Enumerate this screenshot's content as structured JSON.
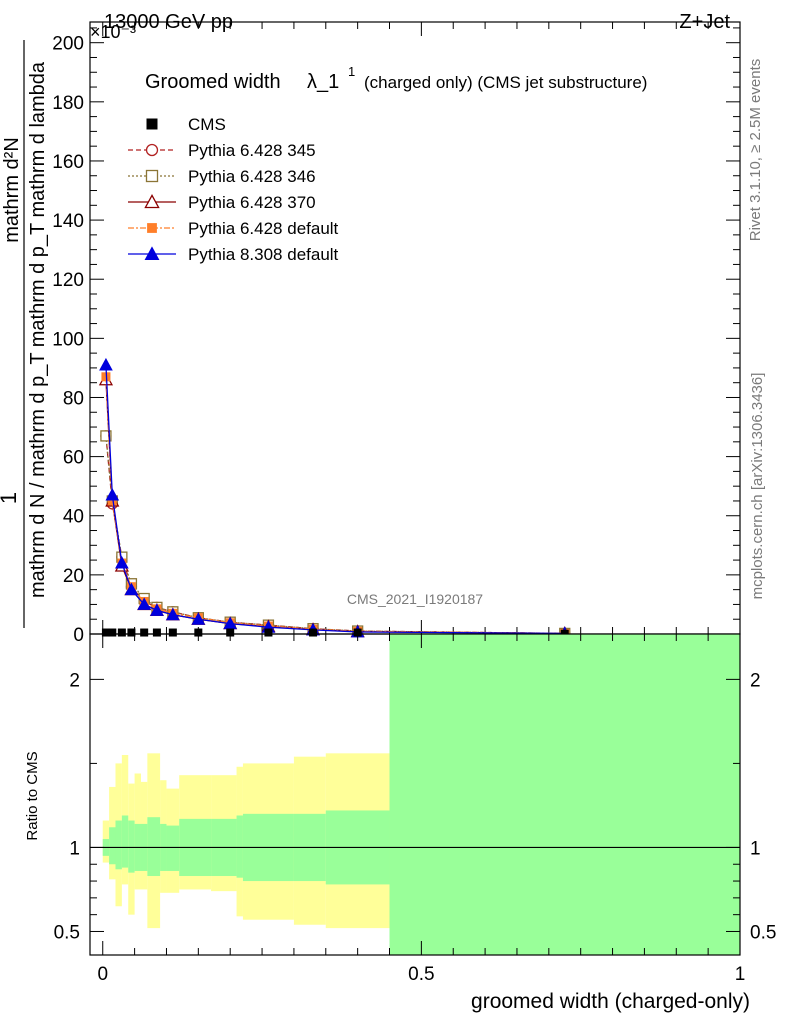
{
  "header": {
    "left": "13000 GeV pp",
    "right": "Z+Jet",
    "exponent": "×10⁻³"
  },
  "side": {
    "rivet": "Rivet 3.1.10, ≥ 2.5M events",
    "mcplots": "mcplots.cern.ch [arXiv:1306.3436]"
  },
  "watermark": "CMS_2021_I1920187",
  "colors": {
    "cms": "#000000",
    "p345": "#b22222",
    "p346": "#8b7536",
    "p370": "#8b0000",
    "p6def": "#ff7f2a",
    "p8def": "#0000dd",
    "band_yellow": "#ffff99",
    "band_green": "#99ff99"
  },
  "chart_data": [
    {
      "type": "line",
      "title": "Groomed width λ_1¹ (charged only) (CMS jet substructure)",
      "title_main": "Groomed width",
      "title_lambda": "λ_1",
      "title_sup": "1",
      "title_rest": "(charged only) (CMS jet substructure)",
      "ylabel_num": "1",
      "ylabel_den": "mathrm d N / mathrm d p_T mathrm d p_T mathrm d lambda",
      "ylabel_top": "mathrm d²N",
      "ylim": [
        0,
        207
      ],
      "xlim": [
        -0.02,
        1.0
      ],
      "yticks": [
        0,
        20,
        40,
        60,
        80,
        100,
        120,
        140,
        160,
        180,
        200
      ],
      "x": [
        0.005,
        0.015,
        0.03,
        0.045,
        0.065,
        0.085,
        0.11,
        0.15,
        0.2,
        0.26,
        0.33,
        0.4,
        0.725
      ],
      "series": [
        {
          "name": "CMS",
          "key": "cms",
          "marker": "square",
          "values": [
            0.5,
            0.5,
            0.5,
            0.5,
            0.5,
            0.5,
            0.5,
            0.5,
            0.5,
            0.5,
            0.5,
            0.5,
            0.1
          ]
        },
        {
          "name": "Pythia 6.428 345",
          "key": "p345",
          "marker": "circle",
          "dash": "5,3",
          "values": [
            67,
            44,
            26,
            16,
            11,
            9,
            7.5,
            5.5,
            4,
            3,
            1.8,
            1,
            0.2
          ]
        },
        {
          "name": "Pythia 6.428 346",
          "key": "p346",
          "marker": "square-open",
          "dash": "2,2",
          "values": [
            67,
            45,
            26,
            17,
            12,
            9,
            7.5,
            5.5,
            4,
            3,
            1.8,
            1,
            0.2
          ]
        },
        {
          "name": "Pythia 6.428 370",
          "key": "p370",
          "marker": "triangle-open",
          "dash": "",
          "values": [
            86,
            45,
            23,
            15,
            10,
            8,
            6.5,
            5,
            3.5,
            2.5,
            1.5,
            0.8,
            0.2
          ]
        },
        {
          "name": "Pythia 6.428 default",
          "key": "p6def",
          "marker": "square-filled",
          "dash": "6,2,2,2",
          "values": [
            87,
            45,
            24,
            16,
            11,
            8.5,
            7,
            5.5,
            3.8,
            2.7,
            1.6,
            0.9,
            0.2
          ]
        },
        {
          "name": "Pythia 8.308 default",
          "key": "p8def",
          "marker": "triangle-filled",
          "dash": "",
          "values": [
            91,
            47,
            24,
            15,
            10,
            8,
            6.5,
            5,
            3.5,
            2.3,
            1.4,
            0.7,
            0.2
          ]
        }
      ]
    },
    {
      "type": "area",
      "ylabel": "Ratio to CMS",
      "xlabel": "groomed width (charged-only)",
      "xlim": [
        -0.02,
        1.0
      ],
      "ylim": [
        0.36,
        2.27
      ],
      "xticks": [
        0,
        0.5,
        1
      ],
      "xtick_labels": [
        "0",
        "0.5",
        "1"
      ],
      "yticks": [
        0.5,
        1,
        2
      ],
      "ytick_labels": [
        "0.5",
        "1",
        "2"
      ],
      "reference": 1,
      "bins": [
        {
          "lo": 0.0,
          "hi": 0.01,
          "yl": 0.91,
          "yh": 1.16,
          "gl": 0.95,
          "gh": 1.05
        },
        {
          "lo": 0.01,
          "hi": 0.02,
          "yl": 0.81,
          "yh": 1.36,
          "gl": 0.9,
          "gh": 1.12
        },
        {
          "lo": 0.02,
          "hi": 0.03,
          "yl": 0.65,
          "yh": 1.5,
          "gl": 0.87,
          "gh": 1.16
        },
        {
          "lo": 0.03,
          "hi": 0.04,
          "yl": 0.78,
          "yh": 1.55,
          "gl": 0.88,
          "gh": 1.19
        },
        {
          "lo": 0.04,
          "hi": 0.05,
          "yl": 0.6,
          "yh": 1.38,
          "gl": 0.85,
          "gh": 1.16
        },
        {
          "lo": 0.05,
          "hi": 0.06,
          "yl": 0.75,
          "yh": 1.44,
          "gl": 0.86,
          "gh": 1.14
        },
        {
          "lo": 0.06,
          "hi": 0.07,
          "yl": 0.75,
          "yh": 1.39,
          "gl": 0.86,
          "gh": 1.14
        },
        {
          "lo": 0.07,
          "hi": 0.09,
          "yl": 0.52,
          "yh": 1.56,
          "gl": 0.83,
          "gh": 1.18
        },
        {
          "lo": 0.09,
          "hi": 0.1,
          "yl": 0.73,
          "yh": 1.4,
          "gl": 0.86,
          "gh": 1.14
        },
        {
          "lo": 0.1,
          "hi": 0.12,
          "yl": 0.73,
          "yh": 1.35,
          "gl": 0.86,
          "gh": 1.13
        },
        {
          "lo": 0.12,
          "hi": 0.17,
          "yl": 0.75,
          "yh": 1.43,
          "gl": 0.83,
          "gh": 1.17
        },
        {
          "lo": 0.17,
          "hi": 0.21,
          "yl": 0.74,
          "yh": 1.43,
          "gl": 0.83,
          "gh": 1.17
        },
        {
          "lo": 0.21,
          "hi": 0.22,
          "yl": 0.59,
          "yh": 1.48,
          "gl": 0.82,
          "gh": 1.19
        },
        {
          "lo": 0.22,
          "hi": 0.3,
          "yl": 0.57,
          "yh": 1.5,
          "gl": 0.8,
          "gh": 1.2
        },
        {
          "lo": 0.3,
          "hi": 0.35,
          "yl": 0.54,
          "yh": 1.54,
          "gl": 0.8,
          "gh": 1.2
        },
        {
          "lo": 0.35,
          "hi": 0.45,
          "yl": 0.52,
          "yh": 1.56,
          "gl": 0.78,
          "gh": 1.22
        },
        {
          "lo": 0.45,
          "hi": 1.0,
          "yl": 0.36,
          "yh": 2.27,
          "gl": 0.36,
          "gh": 2.27
        }
      ]
    }
  ]
}
